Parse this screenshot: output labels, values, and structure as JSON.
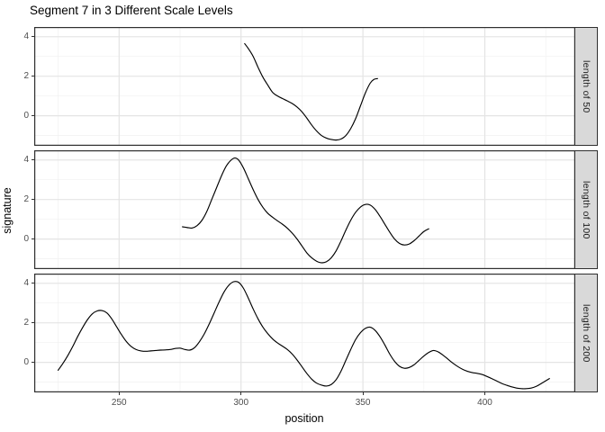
{
  "title": "Segment 7 in 3 Different Scale Levels",
  "style": {
    "curve_color": "#000000",
    "grid_major_color": "#e4e4e4",
    "grid_minor_color": "#f1f1f1",
    "panel_border_color": "#2f2f2f",
    "strip_bg": "#d9d9d9",
    "strip_text_color": "#1a1a1a",
    "tick_label_color": "#4d4d4d",
    "tick_mark_color": "#333333",
    "panel_bg": "#ffffff"
  },
  "chart_data": {
    "type": "line",
    "title": "Segment 7 in 3 Different Scale Levels",
    "xlabel": "position",
    "ylabel": "signature",
    "x_breaks": [
      250,
      300,
      350,
      400
    ],
    "x_minor_breaks": [
      225,
      275,
      325,
      375,
      425
    ],
    "y_breaks": [
      4,
      2,
      0
    ],
    "y_minor_breaks": [
      3,
      1,
      -1
    ],
    "x_range": [
      215.2,
      437.1
    ],
    "y_range": [
      -1.52,
      4.49
    ],
    "grid": "on",
    "legend": "none",
    "facet_layout": "rows, strips on right",
    "facets": [
      {
        "strip": "length of 50",
        "x": [
          301.5,
          303,
          305,
          307,
          309,
          311,
          313,
          315,
          317,
          319,
          321,
          323,
          325,
          327,
          329,
          331,
          333,
          335,
          337,
          339,
          341,
          343,
          345,
          347,
          349,
          351,
          353,
          354.5,
          356
        ],
        "y": [
          3.65,
          3.4,
          3.0,
          2.45,
          1.95,
          1.55,
          1.18,
          1.0,
          0.87,
          0.75,
          0.62,
          0.44,
          0.2,
          -0.12,
          -0.47,
          -0.77,
          -1.0,
          -1.13,
          -1.2,
          -1.23,
          -1.18,
          -1.0,
          -0.65,
          -0.15,
          0.5,
          1.15,
          1.65,
          1.84,
          1.88
        ]
      },
      {
        "strip": "length of 100",
        "x": [
          276,
          278,
          280,
          282,
          284,
          286,
          288,
          290,
          292,
          294,
          296,
          297.5,
          299,
          301,
          303,
          305,
          307,
          309,
          311,
          313,
          315,
          317,
          319,
          321,
          323,
          325,
          327,
          329,
          331,
          333,
          335,
          337,
          339,
          341,
          343,
          345,
          347,
          349,
          351,
          353,
          355,
          357,
          359,
          361,
          363,
          365,
          367,
          369,
          371,
          373,
          375,
          377
        ],
        "y": [
          0.62,
          0.58,
          0.56,
          0.68,
          0.95,
          1.4,
          2.0,
          2.6,
          3.2,
          3.7,
          4.0,
          4.1,
          4.0,
          3.6,
          3.05,
          2.5,
          2.0,
          1.6,
          1.3,
          1.1,
          0.92,
          0.75,
          0.55,
          0.3,
          0.0,
          -0.35,
          -0.7,
          -0.95,
          -1.12,
          -1.2,
          -1.15,
          -0.95,
          -0.6,
          -0.1,
          0.45,
          0.95,
          1.35,
          1.62,
          1.75,
          1.72,
          1.5,
          1.15,
          0.75,
          0.35,
          0.0,
          -0.22,
          -0.3,
          -0.25,
          -0.08,
          0.15,
          0.38,
          0.52
        ]
      },
      {
        "strip": "length of 200",
        "x": [
          225,
          227,
          229,
          231,
          233,
          235,
          237,
          239,
          241,
          243,
          245,
          247,
          249,
          251,
          253,
          255,
          257,
          259,
          261,
          263,
          265,
          267,
          269,
          271,
          273,
          275,
          277,
          279,
          281,
          283,
          285,
          287,
          289,
          291,
          293,
          295,
          297,
          299,
          301,
          303,
          305,
          307,
          309,
          311,
          313,
          315,
          317,
          319,
          321,
          323,
          325,
          327,
          329,
          331,
          333,
          335,
          337,
          339,
          341,
          343,
          345,
          347,
          349,
          351,
          353,
          355,
          357,
          359,
          361,
          363,
          365,
          367,
          369,
          371,
          373,
          375,
          377,
          379,
          381,
          383,
          385,
          387,
          389,
          391,
          393,
          395,
          397,
          399,
          401,
          403,
          405,
          407,
          409,
          411,
          413,
          415,
          417,
          419,
          421,
          423,
          426.5
        ],
        "y": [
          -0.4,
          -0.05,
          0.35,
          0.8,
          1.3,
          1.75,
          2.15,
          2.45,
          2.6,
          2.62,
          2.5,
          2.2,
          1.8,
          1.4,
          1.05,
          0.8,
          0.65,
          0.58,
          0.56,
          0.58,
          0.6,
          0.62,
          0.63,
          0.65,
          0.7,
          0.72,
          0.65,
          0.62,
          0.75,
          1.05,
          1.45,
          1.95,
          2.5,
          3.05,
          3.55,
          3.9,
          4.08,
          4.05,
          3.75,
          3.25,
          2.7,
          2.2,
          1.78,
          1.45,
          1.18,
          0.98,
          0.82,
          0.65,
          0.42,
          0.12,
          -0.22,
          -0.56,
          -0.85,
          -1.05,
          -1.15,
          -1.2,
          -1.12,
          -0.88,
          -0.45,
          0.1,
          0.65,
          1.15,
          1.5,
          1.72,
          1.78,
          1.62,
          1.3,
          0.88,
          0.42,
          0.05,
          -0.2,
          -0.3,
          -0.26,
          -0.12,
          0.1,
          0.32,
          0.5,
          0.6,
          0.52,
          0.35,
          0.15,
          -0.05,
          -0.22,
          -0.36,
          -0.46,
          -0.52,
          -0.56,
          -0.62,
          -0.72,
          -0.83,
          -0.95,
          -1.07,
          -1.16,
          -1.24,
          -1.3,
          -1.33,
          -1.33,
          -1.3,
          -1.22,
          -1.08,
          -0.82
        ]
      }
    ]
  }
}
